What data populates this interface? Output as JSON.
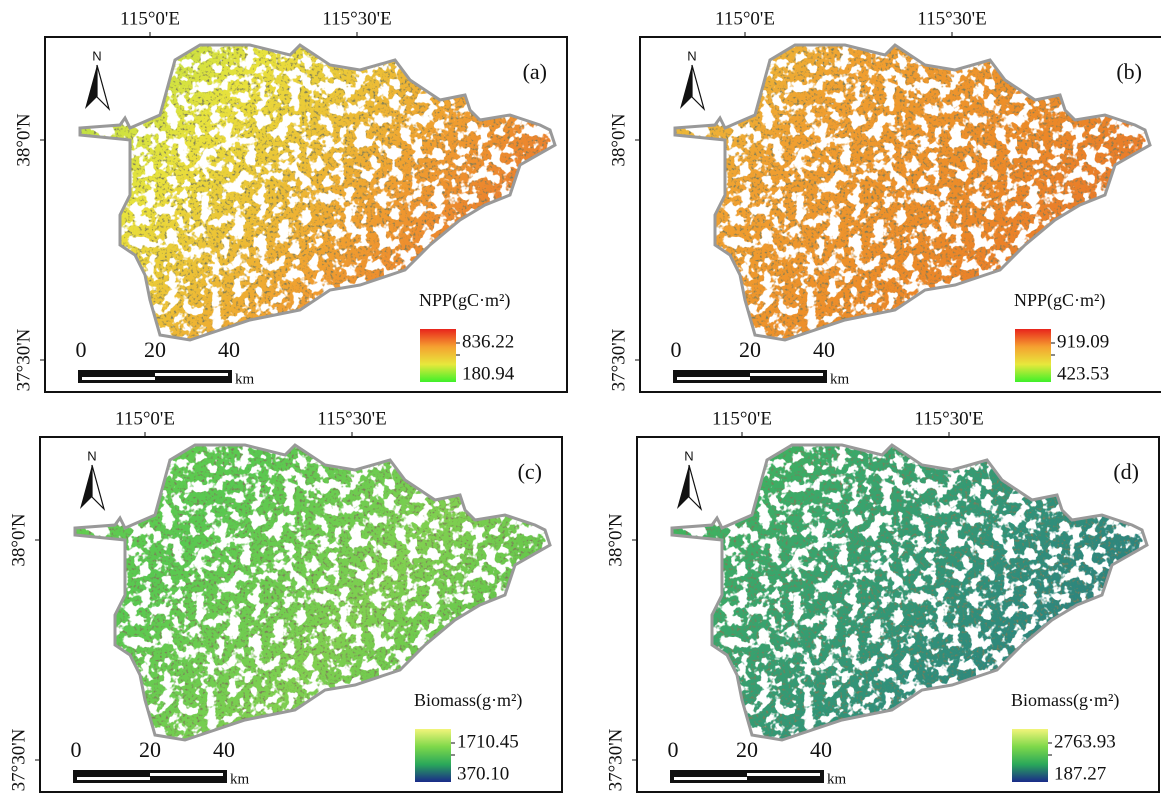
{
  "panels": [
    {
      "label": "(a)",
      "north": "N",
      "lon_labels": [
        "115°0'E",
        "115°30'E"
      ],
      "lat_labels": [
        "38°0'N",
        "37°30'N"
      ],
      "legend": {
        "title": "NPP(gC·m²)",
        "high": "836.22",
        "low": "180.94"
      },
      "scale": {
        "ticks": [
          "0",
          "20",
          "40"
        ],
        "unit": "km"
      }
    },
    {
      "label": "(b)",
      "north": "N",
      "lon_labels": [
        "115°0'E",
        "115°30'E"
      ],
      "lat_labels": [
        "38°0'N",
        "37°30'N"
      ],
      "legend": {
        "title": "NPP(gC·m²)",
        "high": "919.09",
        "low": "423.53"
      },
      "scale": {
        "ticks": [
          "0",
          "20",
          "40"
        ],
        "unit": "km"
      }
    },
    {
      "label": "(c)",
      "north": "N",
      "lon_labels": [
        "115°0'E",
        "115°30'E"
      ],
      "lat_labels": [
        "38°0'N",
        "37°30'N"
      ],
      "legend": {
        "title": "Biomass(g·m²)",
        "high": "1710.45",
        "low": "370.10"
      },
      "scale": {
        "ticks": [
          "0",
          "20",
          "40"
        ],
        "unit": "km"
      }
    },
    {
      "label": "(d)",
      "north": "N",
      "lon_labels": [
        "115°0'E",
        "115°30'E"
      ],
      "lat_labels": [
        "38°0'N",
        "37°30'N"
      ],
      "legend": {
        "title": "Biomass(g·m²)",
        "high": "2763.93",
        "low": "187.27"
      },
      "scale": {
        "ticks": [
          "0",
          "20",
          "40"
        ],
        "unit": "km"
      }
    }
  ]
}
